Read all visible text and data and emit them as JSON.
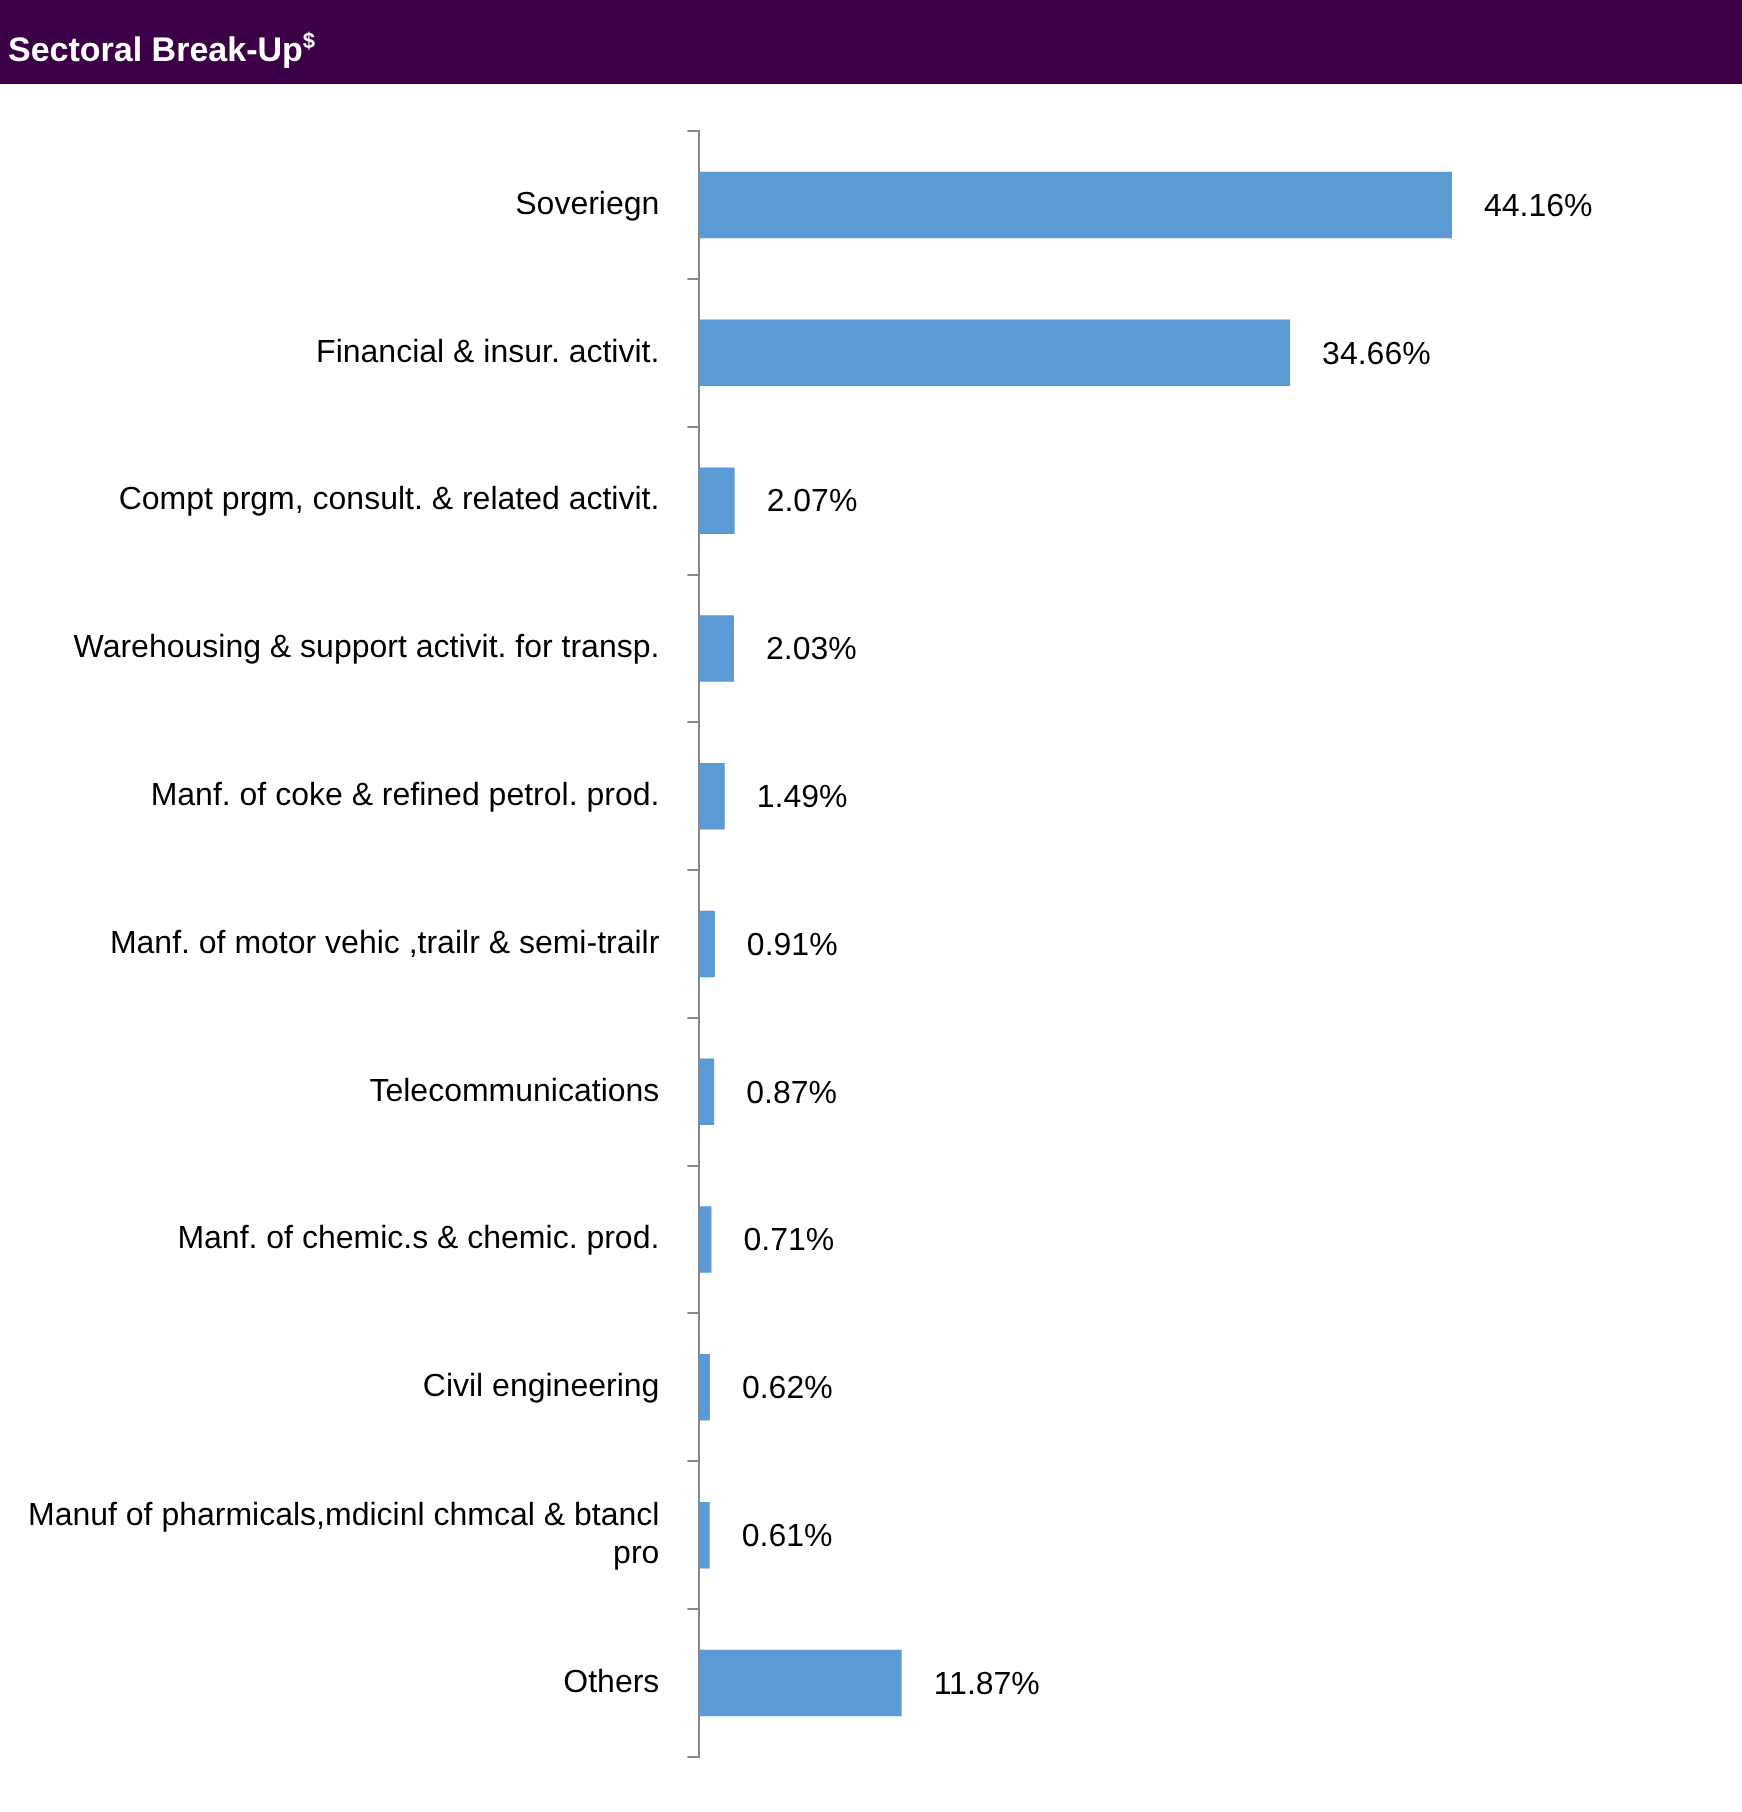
{
  "chart_data": {
    "type": "bar",
    "orientation": "horizontal",
    "title": "Sectoral Break-Up$^{$}$",
    "categories": [
      "Soveriegn",
      "Financial & insur. activit.",
      "Compt prgm, consult. & related activit.",
      "Warehousing & support activit. for transp.",
      "Manf. of coke & refined petrol. prod.",
      "Manf. of motor vehic ,trailr & semi-trailr",
      "Telecommunications",
      "Manf. of chemic.s & chemic. prod.",
      "Civil engineering",
      "Manuf of pharmicals,mdicinl chmcal & btancl pro",
      "Others"
    ],
    "values": [
      44.16,
      34.66,
      2.07,
      2.03,
      1.49,
      0.91,
      0.87,
      0.71,
      0.62,
      0.61,
      11.87
    ],
    "value_labels": [
      "44.16%",
      "34.66%",
      "2.07%",
      "2.03%",
      "1.49%",
      "0.91%",
      "0.87%",
      "0.71%",
      "0.62%",
      "0.61%",
      "11.87%"
    ],
    "color": "#5b9bd5",
    "legend": false,
    "tick_labels": "y"
  }
}
